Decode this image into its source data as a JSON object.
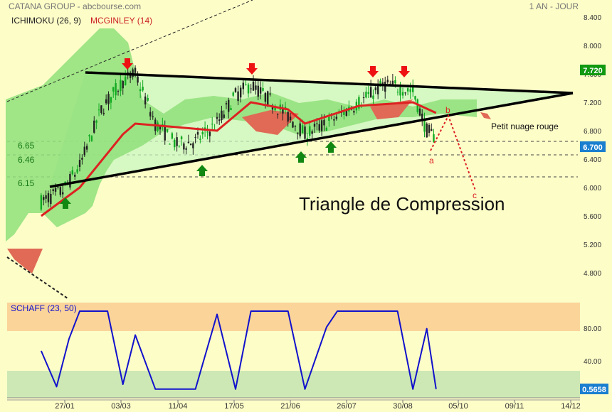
{
  "header": {
    "source": "CATANA GROUP - abcbourse.com",
    "period": "1 AN - JOUR"
  },
  "legend": {
    "ichimoku": "ICHIMOKU (26, 9)",
    "mcginley": "MCGINLEY (14)"
  },
  "colors": {
    "background": "#fdfdc8",
    "up_candle": "#11aa22",
    "down_candle": "#222222",
    "mcginley": "#dd2222",
    "cloud_bull": "#8fe07a",
    "cloud_bear": "#e06a55",
    "triangle_fill": "#c8f5c0",
    "schaff_line": "#1111cc",
    "schaff_high_zone": "#fbd49a",
    "schaff_low_zone": "#cde8b4",
    "last_price_box": "#1a7fcf",
    "high_price_box": "#119911"
  },
  "price_axis": {
    "ticks": [
      "8.400",
      "8.000",
      "7.600",
      "7.200",
      "6.800",
      "6.400",
      "6.000",
      "5.600",
      "5.200",
      "4.800"
    ],
    "min": 4.6,
    "max": 8.4
  },
  "x_axis": {
    "labels": [
      "27/01",
      "03/03",
      "11/04",
      "17/05",
      "21/06",
      "26/07",
      "30/08",
      "05/10",
      "09/11",
      "14/12"
    ]
  },
  "badges": {
    "high_price": "7.720",
    "last_price": "6.700",
    "schaff_value": "0.5658"
  },
  "levels": [
    {
      "label": "6.65",
      "value": 6.65
    },
    {
      "label": "6.46",
      "value": 6.46
    },
    {
      "label": "6.15",
      "value": 6.15
    }
  ],
  "annotations": {
    "triangle_title": "Triangle de Compression",
    "cloud_note": "Petit nuage rouge",
    "wave_a": "a",
    "wave_b": "b",
    "wave_c": "c"
  },
  "schaff": {
    "title": "SCHAFF (23, 50)",
    "ticks": [
      "80.00",
      "40.00"
    ],
    "upper_level": 75,
    "lower_level": 25
  },
  "chart_data": [
    {
      "type": "candlestick",
      "title": "",
      "series": [
        {
          "name": "Price (approx. close)",
          "points": [
            [
              "2020-01-02",
              5.8
            ],
            [
              "2020-01-16",
              5.95
            ],
            [
              "2020-01-27",
              6.3
            ],
            [
              "2020-02-10",
              7.1
            ],
            [
              "2020-02-24",
              7.5
            ],
            [
              "2020-03-03",
              7.6
            ],
            [
              "2020-03-16",
              6.9
            ],
            [
              "2020-03-30",
              6.6
            ],
            [
              "2020-04-11",
              6.65
            ],
            [
              "2020-04-25",
              6.9
            ],
            [
              "2020-05-07",
              7.3
            ],
            [
              "2020-05-17",
              7.45
            ],
            [
              "2020-05-31",
              7.2
            ],
            [
              "2020-06-10",
              7.0
            ],
            [
              "2020-06-21",
              6.75
            ],
            [
              "2020-07-05",
              6.9
            ],
            [
              "2020-07-26",
              7.2
            ],
            [
              "2020-08-12",
              7.45
            ],
            [
              "2020-08-30",
              7.35
            ],
            [
              "2020-09-08",
              6.8
            ],
            [
              "2020-09-14",
              6.7
            ]
          ]
        },
        {
          "name": "MCGINLEY (14)",
          "points": [
            [
              "2020-01-02",
              5.6
            ],
            [
              "2020-01-27",
              6.0
            ],
            [
              "2020-02-24",
              6.75
            ],
            [
              "2020-03-03",
              6.9
            ],
            [
              "2020-03-30",
              6.85
            ],
            [
              "2020-04-25",
              6.8
            ],
            [
              "2020-05-17",
              7.2
            ],
            [
              "2020-06-10",
              7.1
            ],
            [
              "2020-06-21",
              6.9
            ],
            [
              "2020-07-26",
              7.15
            ],
            [
              "2020-08-30",
              7.2
            ],
            [
              "2020-09-14",
              7.05
            ]
          ]
        }
      ],
      "ichimoku_cloud": "green cloud below price through most of the year; small red cloud ahead in Sept-Oct",
      "triangle": {
        "upper_line_from": 7.65,
        "upper_line_to": 7.4,
        "lower_line_from": 6.15,
        "lower_line_to": 7.4
      },
      "ylim": [
        4.6,
        8.4
      ]
    },
    {
      "type": "line",
      "title": "SCHAFF (23, 50)",
      "series": [
        {
          "name": "SCHAFF (23, 50)",
          "points": [
            [
              "2020-01-02",
              50
            ],
            [
              "2020-01-12",
              5
            ],
            [
              "2020-01-20",
              65
            ],
            [
              "2020-01-27",
              100
            ],
            [
              "2020-02-14",
              100
            ],
            [
              "2020-02-24",
              8
            ],
            [
              "2020-03-03",
              70
            ],
            [
              "2020-03-16",
              2
            ],
            [
              "2020-04-11",
              2
            ],
            [
              "2020-04-25",
              96
            ],
            [
              "2020-05-07",
              2
            ],
            [
              "2020-05-17",
              100
            ],
            [
              "2020-06-10",
              100
            ],
            [
              "2020-06-21",
              2
            ],
            [
              "2020-07-05",
              80
            ],
            [
              "2020-07-12",
              100
            ],
            [
              "2020-08-20",
              100
            ],
            [
              "2020-08-30",
              2
            ],
            [
              "2020-09-08",
              78
            ],
            [
              "2020-09-14",
              2
            ]
          ]
        }
      ],
      "ylim": [
        0,
        100
      ]
    }
  ]
}
